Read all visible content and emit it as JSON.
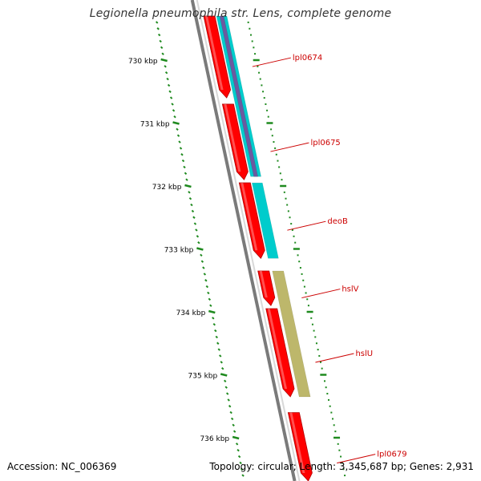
{
  "title": "Legionella pneumophila str. Lens, complete genome",
  "footer": {
    "accession": "Accession: NC_006369",
    "summary": "Topology: circular; Length: 3,345,687 bp; Genes: 2,931"
  },
  "colors": {
    "backbone": "#7a7a7a",
    "gene_forward": "#ff0000",
    "gene_cog_cyan": "#00cccc",
    "gene_cog_purple": "#6b5aa0",
    "gene_cog_khaki": "#bdb76b",
    "tick": "#1f8a1f",
    "label": "#cc0000"
  },
  "axis": {
    "ticks": [
      {
        "kbp": 730,
        "label": "730 kbp"
      },
      {
        "kbp": 731,
        "label": "731 kbp"
      },
      {
        "kbp": 732,
        "label": "732 kbp"
      },
      {
        "kbp": 733,
        "label": "733 kbp"
      },
      {
        "kbp": 734,
        "label": "734 kbp"
      },
      {
        "kbp": 735,
        "label": "735 kbp"
      },
      {
        "kbp": 736,
        "label": "736 kbp"
      }
    ],
    "minor_step_kbp": 0.1
  },
  "genes": [
    {
      "name": "lpl0674",
      "start_kbp": 729.3,
      "end_kbp": 730.6
    },
    {
      "name": "lpl0675",
      "start_kbp": 730.7,
      "end_kbp": 731.9
    },
    {
      "name": "deoB",
      "start_kbp": 731.95,
      "end_kbp": 733.15
    },
    {
      "name": "hslV",
      "start_kbp": 733.35,
      "end_kbp": 733.9
    },
    {
      "name": "hslU",
      "start_kbp": 733.95,
      "end_kbp": 735.35
    },
    {
      "name": "lpl0679",
      "start_kbp": 735.6,
      "end_kbp": 736.9
    }
  ],
  "cog_blocks": [
    {
      "color_key": "gene_cog_cyan",
      "start_kbp": 729.3,
      "end_kbp": 731.85
    },
    {
      "color_key": "gene_cog_purple",
      "start_kbp": 729.3,
      "end_kbp": 731.85
    },
    {
      "color_key": "gene_cog_cyan",
      "start_kbp": 731.95,
      "end_kbp": 733.15
    },
    {
      "color_key": "gene_cog_khaki",
      "start_kbp": 733.35,
      "end_kbp": 735.35
    }
  ]
}
